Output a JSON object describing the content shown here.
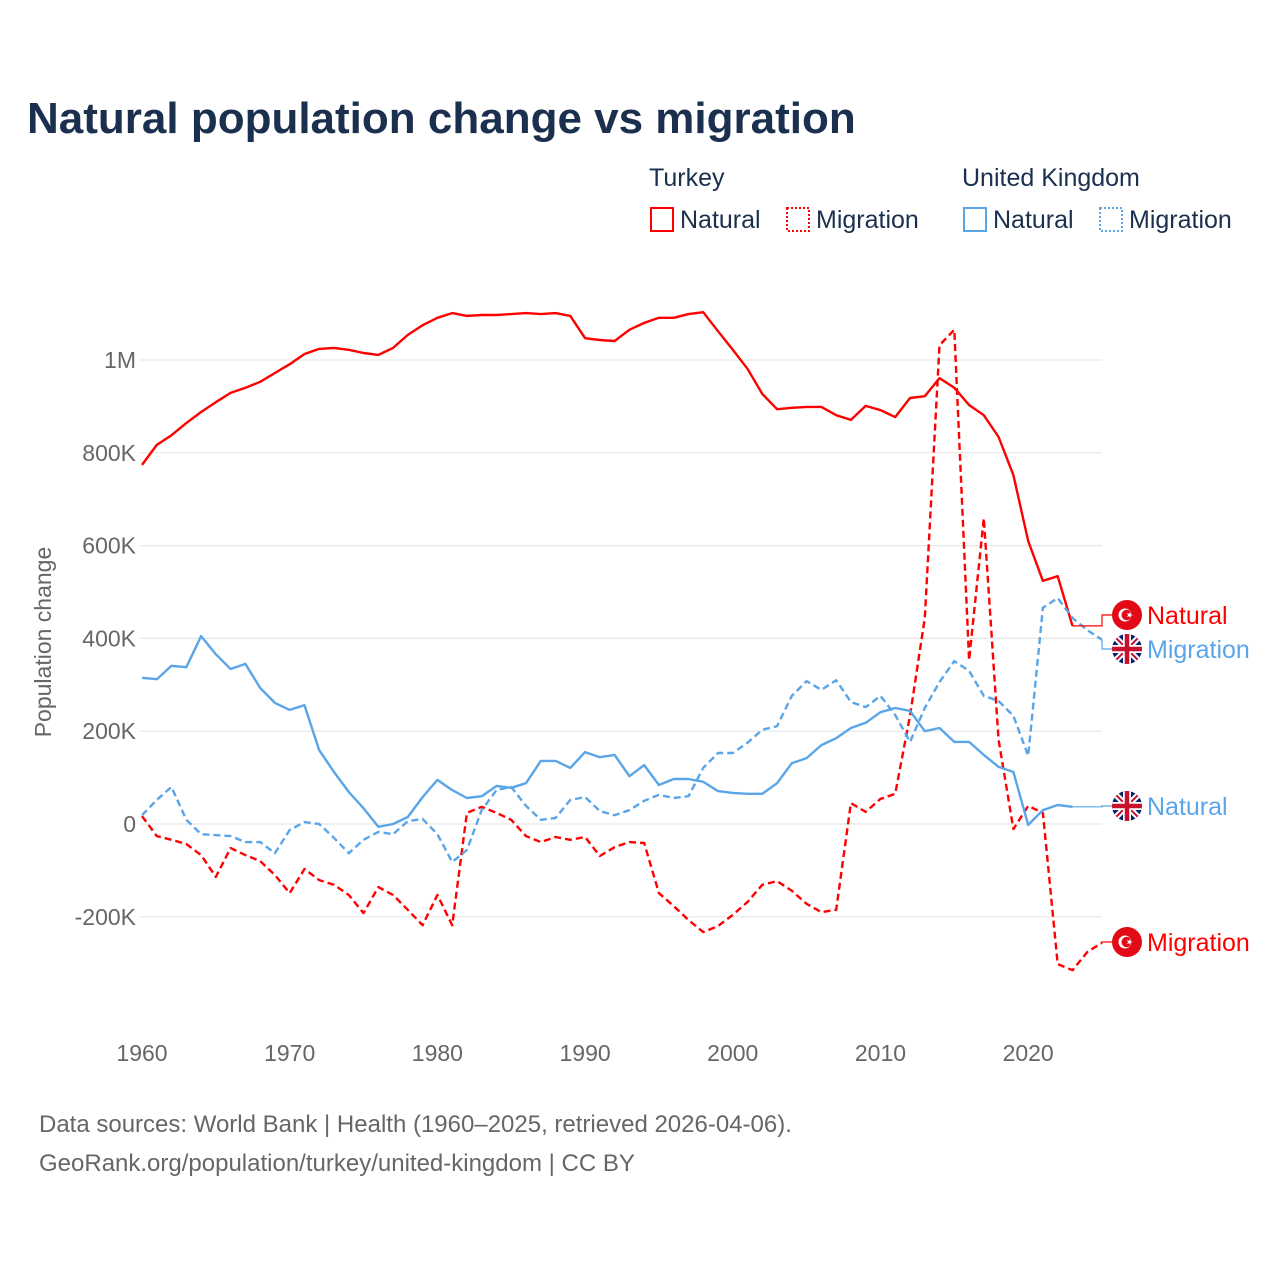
{
  "title": "Natural population change vs migration",
  "legend": {
    "groups": [
      {
        "name": "Turkey",
        "color": "#ff0000",
        "items": [
          "Natural",
          "Migration"
        ]
      },
      {
        "name": "United Kingdom",
        "color": "#5aa5e8",
        "items": [
          "Natural",
          "Migration"
        ]
      }
    ]
  },
  "footer": {
    "line1": "Data sources: World Bank | Health (1960–2025, retrieved 2026-04-06).",
    "line2": "GeoRank.org/population/turkey/united-kingdom | CC BY"
  },
  "chart_data": {
    "type": "line",
    "title": "Natural population change vs migration",
    "xlabel": "",
    "ylabel": "Population change",
    "xlim": [
      1960,
      2025
    ],
    "ylim": [
      -350000,
      1150000
    ],
    "x_ticks": [
      1960,
      1970,
      1980,
      1990,
      2000,
      2010,
      2020
    ],
    "x_tick_labels": [
      "1960",
      "1970",
      "1980",
      "1990",
      "2000",
      "2010",
      "2020"
    ],
    "y_ticks": [
      -200000,
      0,
      200000,
      400000,
      600000,
      800000,
      1000000
    ],
    "y_tick_labels": [
      "-200K",
      "0",
      "200K",
      "400K",
      "600K",
      "800K",
      "1M"
    ],
    "grid": true,
    "legend_position": "top-right",
    "units": "thousands",
    "series": [
      {
        "name": "Turkey Natural",
        "country": "Turkey",
        "kind": "Natural",
        "color": "#ff0000",
        "dash": false,
        "start_year": 1960,
        "end_label": "Natural",
        "flag": "turkey-flag",
        "values": [
          774,
          817,
          838,
          864,
          888,
          909,
          929,
          940,
          953,
          972,
          991,
          1013,
          1024,
          1026,
          1022,
          1015,
          1011,
          1026,
          1054,
          1075,
          1091,
          1101,
          1095,
          1097,
          1097,
          1099,
          1101,
          1099,
          1101,
          1095,
          1047,
          1043,
          1041,
          1065,
          1080,
          1091,
          1091,
          1099,
          1103,
          1062,
          1022,
          981,
          927,
          894,
          897,
          899,
          899,
          881,
          871,
          901,
          892,
          877,
          918,
          922,
          961,
          940,
          903,
          881,
          834,
          752,
          610,
          524,
          534,
          427
        ]
      },
      {
        "name": "Turkey Migration",
        "country": "Turkey",
        "kind": "Migration",
        "color": "#ff0000",
        "dash": true,
        "start_year": 1960,
        "end_label": "Migration",
        "flag": "turkey-flag",
        "values": [
          17,
          -26,
          -34,
          -43,
          -67,
          -114,
          -52,
          -67,
          -80,
          -110,
          -149,
          -97,
          -121,
          -131,
          -153,
          -192,
          -136,
          -153,
          -185,
          -218,
          -153,
          -218,
          24,
          37,
          24,
          9,
          -26,
          -39,
          -28,
          -34,
          -28,
          -69,
          -50,
          -39,
          -41,
          -149,
          -177,
          -207,
          -233,
          -220,
          -196,
          -168,
          -131,
          -123,
          -144,
          -172,
          -190,
          -185,
          45,
          26,
          54,
          65,
          233,
          444,
          1032,
          1065,
          353,
          659,
          181,
          -11,
          39,
          24,
          -302,
          -315,
          -276,
          -256
        ]
      },
      {
        "name": "United Kingdom Natural",
        "country": "United Kingdom",
        "kind": "Natural",
        "color": "#5aa5e8",
        "dash": false,
        "start_year": 1960,
        "end_label": "Natural",
        "flag": "uk-flag",
        "values": [
          315,
          312,
          341,
          338,
          405,
          366,
          334,
          345,
          293,
          261,
          246,
          256,
          159,
          112,
          69,
          34,
          -6,
          0,
          15,
          58,
          95,
          73,
          56,
          60,
          82,
          78,
          88,
          136,
          136,
          121,
          155,
          144,
          149,
          103,
          127,
          84,
          97,
          97,
          91,
          71,
          67,
          65,
          65,
          88,
          131,
          142,
          170,
          185,
          207,
          218,
          241,
          250,
          244,
          200,
          207,
          177,
          177,
          149,
          123,
          112,
          -2,
          30,
          41,
          37
        ]
      },
      {
        "name": "United Kingdom Migration",
        "country": "United Kingdom",
        "kind": "Migration",
        "color": "#5aa5e8",
        "dash": true,
        "start_year": 1960,
        "end_label": "Migration",
        "flag": "uk-flag",
        "values": [
          19,
          52,
          80,
          9,
          -22,
          -24,
          -26,
          -39,
          -39,
          -63,
          -13,
          4,
          0,
          -30,
          -63,
          -34,
          -17,
          -22,
          6,
          11,
          -22,
          -82,
          -56,
          30,
          73,
          80,
          39,
          9,
          13,
          52,
          58,
          28,
          19,
          30,
          50,
          63,
          56,
          60,
          121,
          153,
          153,
          175,
          203,
          211,
          276,
          308,
          289,
          310,
          263,
          252,
          276,
          235,
          177,
          250,
          306,
          351,
          330,
          276,
          265,
          233,
          147,
          466,
          487,
          444,
          418,
          397
        ]
      }
    ]
  }
}
